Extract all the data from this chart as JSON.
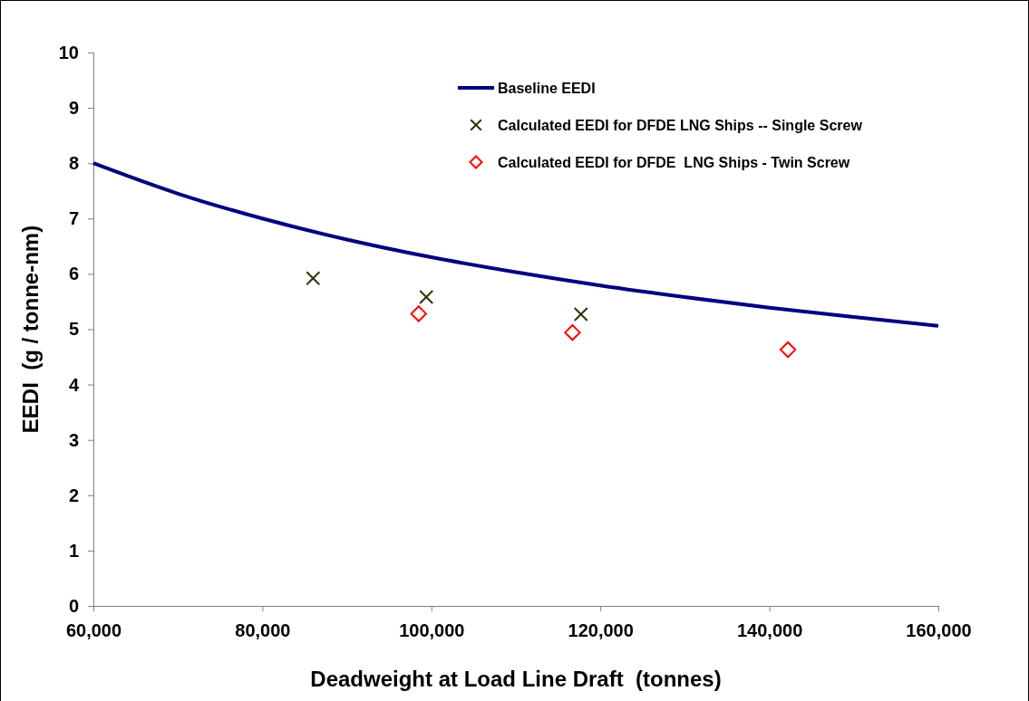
{
  "chart_data": {
    "type": "line",
    "xlabel": "Deadweight at Load Line Draft  (tonnes)",
    "ylabel": "EEDI  (g / tonne-nm)",
    "xlim": [
      60000,
      160000
    ],
    "xticks": [
      {
        "value": 60000,
        "label": "60,000"
      },
      {
        "value": 80000,
        "label": "80,000"
      },
      {
        "value": 100000,
        "label": "100,000"
      },
      {
        "value": 120000,
        "label": "120,000"
      },
      {
        "value": 140000,
        "label": "140,000"
      },
      {
        "value": 160000,
        "label": "160,000"
      }
    ],
    "ylim": [
      0,
      10
    ],
    "yticks": [
      0,
      1,
      2,
      3,
      4,
      5,
      6,
      7,
      8,
      9,
      10
    ],
    "grid": false,
    "legend": "top",
    "series": [
      {
        "name": "Baseline EEDI",
        "color": "#000080",
        "marker": "none",
        "line_style": "solid",
        "x": [
          60000,
          70000,
          80000,
          90000,
          100000,
          110000,
          120000,
          130000,
          140000,
          150000,
          160000
        ],
        "values": [
          8.0,
          7.45,
          7.0,
          6.62,
          6.3,
          6.03,
          5.79,
          5.58,
          5.39,
          5.22,
          5.06
        ]
      },
      {
        "name": "Calculated EEDI for DFDE LNG Ships -- Single Screw",
        "type": "scatter",
        "color": "#333300",
        "marker": "cross",
        "x": [
          86000,
          99400,
          117700
        ],
        "values": [
          5.92,
          5.58,
          5.27
        ]
      },
      {
        "name": "Calculated EEDI for DFDE  LNG Ships - Twin Screw",
        "type": "scatter",
        "color": "#ff0000",
        "marker": "diamond",
        "x": [
          98500,
          116700,
          142200
        ],
        "values": [
          5.28,
          4.94,
          4.63
        ]
      }
    ]
  }
}
